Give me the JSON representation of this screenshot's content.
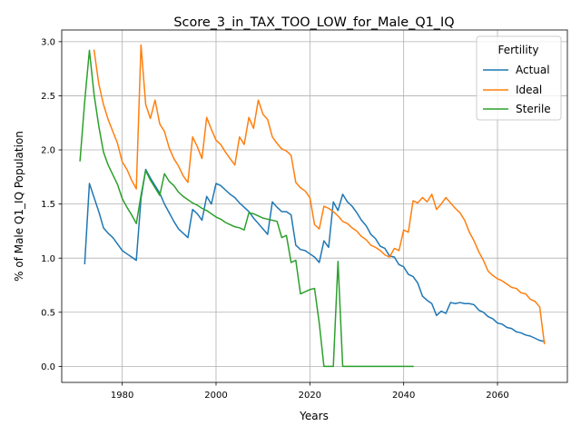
{
  "chart_data": {
    "type": "line",
    "title": "Score_3_in_TAX_TOO_LOW_for_Male_Q1_IQ",
    "xlabel": "Years",
    "ylabel": "% of Male Q1_IQ Population",
    "xlim": [
      1967.1,
      2074.9
    ],
    "ylim": [
      -0.148,
      3.108
    ],
    "xticks": [
      1980,
      2000,
      2020,
      2040,
      2060
    ],
    "yticks": [
      0.0,
      0.5,
      1.0,
      1.5,
      2.0,
      2.5,
      3.0
    ],
    "xtick_labels": [
      "1980",
      "2000",
      "2020",
      "2040",
      "2060"
    ],
    "ytick_labels": [
      "0.0",
      "0.5",
      "1.0",
      "1.5",
      "2.0",
      "2.5",
      "3.0"
    ],
    "grid": true,
    "legend": {
      "title": "Fertility",
      "position": "top-right"
    },
    "series": [
      {
        "name": "Actual",
        "color": "#1f77b4",
        "x": [
          1972,
          1973,
          1974,
          1975,
          1976,
          1977,
          1978,
          1979,
          1980,
          1981,
          1982,
          1983,
          1984,
          1985,
          1986,
          1987,
          1988,
          1989,
          1990,
          1991,
          1992,
          1993,
          1994,
          1995,
          1996,
          1997,
          1998,
          1999,
          2000,
          2001,
          2002,
          2003,
          2004,
          2005,
          2006,
          2007,
          2008,
          2009,
          2010,
          2011,
          2012,
          2013,
          2014,
          2015,
          2016,
          2017,
          2018,
          2019,
          2020,
          2021,
          2022,
          2023,
          2024,
          2025,
          2026,
          2027,
          2028,
          2029,
          2030,
          2031,
          2032,
          2033,
          2034,
          2035,
          2036,
          2037,
          2038,
          2039,
          2040,
          2041,
          2042,
          2043,
          2044,
          2045,
          2046,
          2047,
          2048,
          2049,
          2050,
          2051,
          2052,
          2053,
          2054,
          2055,
          2056,
          2057,
          2058,
          2059,
          2060,
          2061,
          2062,
          2063,
          2064,
          2065,
          2066,
          2067,
          2068,
          2069,
          2070
        ],
        "values": [
          0.95,
          1.69,
          1.56,
          1.43,
          1.28,
          1.23,
          1.19,
          1.13,
          1.07,
          1.04,
          1.01,
          0.98,
          1.55,
          1.82,
          1.74,
          1.67,
          1.6,
          1.5,
          1.42,
          1.34,
          1.27,
          1.23,
          1.19,
          1.45,
          1.41,
          1.35,
          1.57,
          1.5,
          1.69,
          1.67,
          1.63,
          1.59,
          1.56,
          1.51,
          1.47,
          1.43,
          1.37,
          1.32,
          1.27,
          1.22,
          1.52,
          1.47,
          1.43,
          1.43,
          1.4,
          1.12,
          1.08,
          1.07,
          1.04,
          1.01,
          0.96,
          1.16,
          1.1,
          1.52,
          1.44,
          1.59,
          1.52,
          1.48,
          1.42,
          1.35,
          1.3,
          1.22,
          1.18,
          1.11,
          1.09,
          1.02,
          1.01,
          0.94,
          0.92,
          0.85,
          0.83,
          0.77,
          0.65,
          0.61,
          0.58,
          0.47,
          0.51,
          0.49,
          0.59,
          0.58,
          0.59,
          0.58,
          0.58,
          0.57,
          0.52,
          0.5,
          0.46,
          0.44,
          0.4,
          0.39,
          0.36,
          0.35,
          0.32,
          0.31,
          0.29,
          0.28,
          0.26,
          0.24,
          0.23
        ]
      },
      {
        "name": "Ideal",
        "color": "#ff7f0e",
        "x": [
          1974,
          1975,
          1976,
          1977,
          1978,
          1979,
          1980,
          1981,
          1982,
          1983,
          1984,
          1985,
          1986,
          1987,
          1988,
          1989,
          1990,
          1991,
          1992,
          1993,
          1994,
          1995,
          1996,
          1997,
          1998,
          1999,
          2000,
          2001,
          2002,
          2003,
          2004,
          2005,
          2006,
          2007,
          2008,
          2009,
          2010,
          2011,
          2012,
          2013,
          2014,
          2015,
          2016,
          2017,
          2018,
          2019,
          2020,
          2021,
          2022,
          2023,
          2024,
          2025,
          2026,
          2027,
          2028,
          2029,
          2030,
          2031,
          2032,
          2033,
          2034,
          2035,
          2036,
          2037,
          2038,
          2039,
          2040,
          2041,
          2042,
          2043,
          2044,
          2045,
          2046,
          2047,
          2048,
          2049,
          2050,
          2051,
          2052,
          2053,
          2054,
          2055,
          2056,
          2057,
          2058,
          2059,
          2060,
          2061,
          2062,
          2063,
          2064,
          2065,
          2066,
          2067,
          2068,
          2069,
          2070
        ],
        "values": [
          2.92,
          2.61,
          2.42,
          2.28,
          2.17,
          2.06,
          1.89,
          1.82,
          1.72,
          1.64,
          2.97,
          2.42,
          2.29,
          2.46,
          2.24,
          2.17,
          2.02,
          1.92,
          1.85,
          1.76,
          1.7,
          2.12,
          2.03,
          1.92,
          2.3,
          2.19,
          2.09,
          2.05,
          1.98,
          1.92,
          1.86,
          2.12,
          2.05,
          2.3,
          2.2,
          2.46,
          2.33,
          2.28,
          2.12,
          2.06,
          2.01,
          1.99,
          1.95,
          1.7,
          1.65,
          1.62,
          1.56,
          1.31,
          1.27,
          1.48,
          1.46,
          1.43,
          1.39,
          1.34,
          1.32,
          1.28,
          1.25,
          1.2,
          1.17,
          1.12,
          1.1,
          1.07,
          1.03,
          1.01,
          1.09,
          1.07,
          1.26,
          1.24,
          1.53,
          1.51,
          1.56,
          1.52,
          1.59,
          1.45,
          1.5,
          1.56,
          1.51,
          1.46,
          1.42,
          1.35,
          1.24,
          1.16,
          1.06,
          0.98,
          0.88,
          0.84,
          0.81,
          0.79,
          0.76,
          0.73,
          0.72,
          0.68,
          0.67,
          0.62,
          0.6,
          0.55,
          0.21
        ]
      },
      {
        "name": "Sterile",
        "color": "#2ca02c",
        "x": [
          1971,
          1972,
          1973,
          1974,
          1975,
          1976,
          1977,
          1978,
          1979,
          1980,
          1981,
          1982,
          1983,
          1984,
          1985,
          1986,
          1987,
          1988,
          1989,
          1990,
          1991,
          1992,
          1993,
          1994,
          1995,
          1996,
          1997,
          1998,
          1999,
          2000,
          2001,
          2002,
          2003,
          2004,
          2005,
          2006,
          2007,
          2008,
          2009,
          2010,
          2011,
          2012,
          2013,
          2014,
          2015,
          2016,
          2017,
          2018,
          2019,
          2020,
          2021,
          2022,
          2023,
          2024,
          2025,
          2026,
          2027,
          2028,
          2029,
          2030,
          2031,
          2032,
          2033,
          2034,
          2035,
          2036,
          2037,
          2038,
          2039,
          2040,
          2041,
          2042
        ],
        "values": [
          1.9,
          2.45,
          2.92,
          2.51,
          2.22,
          1.98,
          1.86,
          1.77,
          1.68,
          1.55,
          1.47,
          1.4,
          1.32,
          1.58,
          1.81,
          1.72,
          1.65,
          1.58,
          1.78,
          1.71,
          1.67,
          1.61,
          1.57,
          1.54,
          1.51,
          1.49,
          1.46,
          1.44,
          1.41,
          1.38,
          1.36,
          1.33,
          1.31,
          1.29,
          1.28,
          1.26,
          1.42,
          1.41,
          1.39,
          1.37,
          1.36,
          1.35,
          1.34,
          1.19,
          1.21,
          0.96,
          0.98,
          0.67,
          0.69,
          0.71,
          0.72,
          0.4,
          0.0,
          0.0,
          0.0,
          0.97,
          0.0,
          0.0,
          0.0,
          0.0,
          0.0,
          0.0,
          0.0,
          0.0,
          0.0,
          0.0,
          0.0,
          0.0,
          0.0,
          0.0,
          0.0,
          0.0
        ]
      }
    ]
  }
}
